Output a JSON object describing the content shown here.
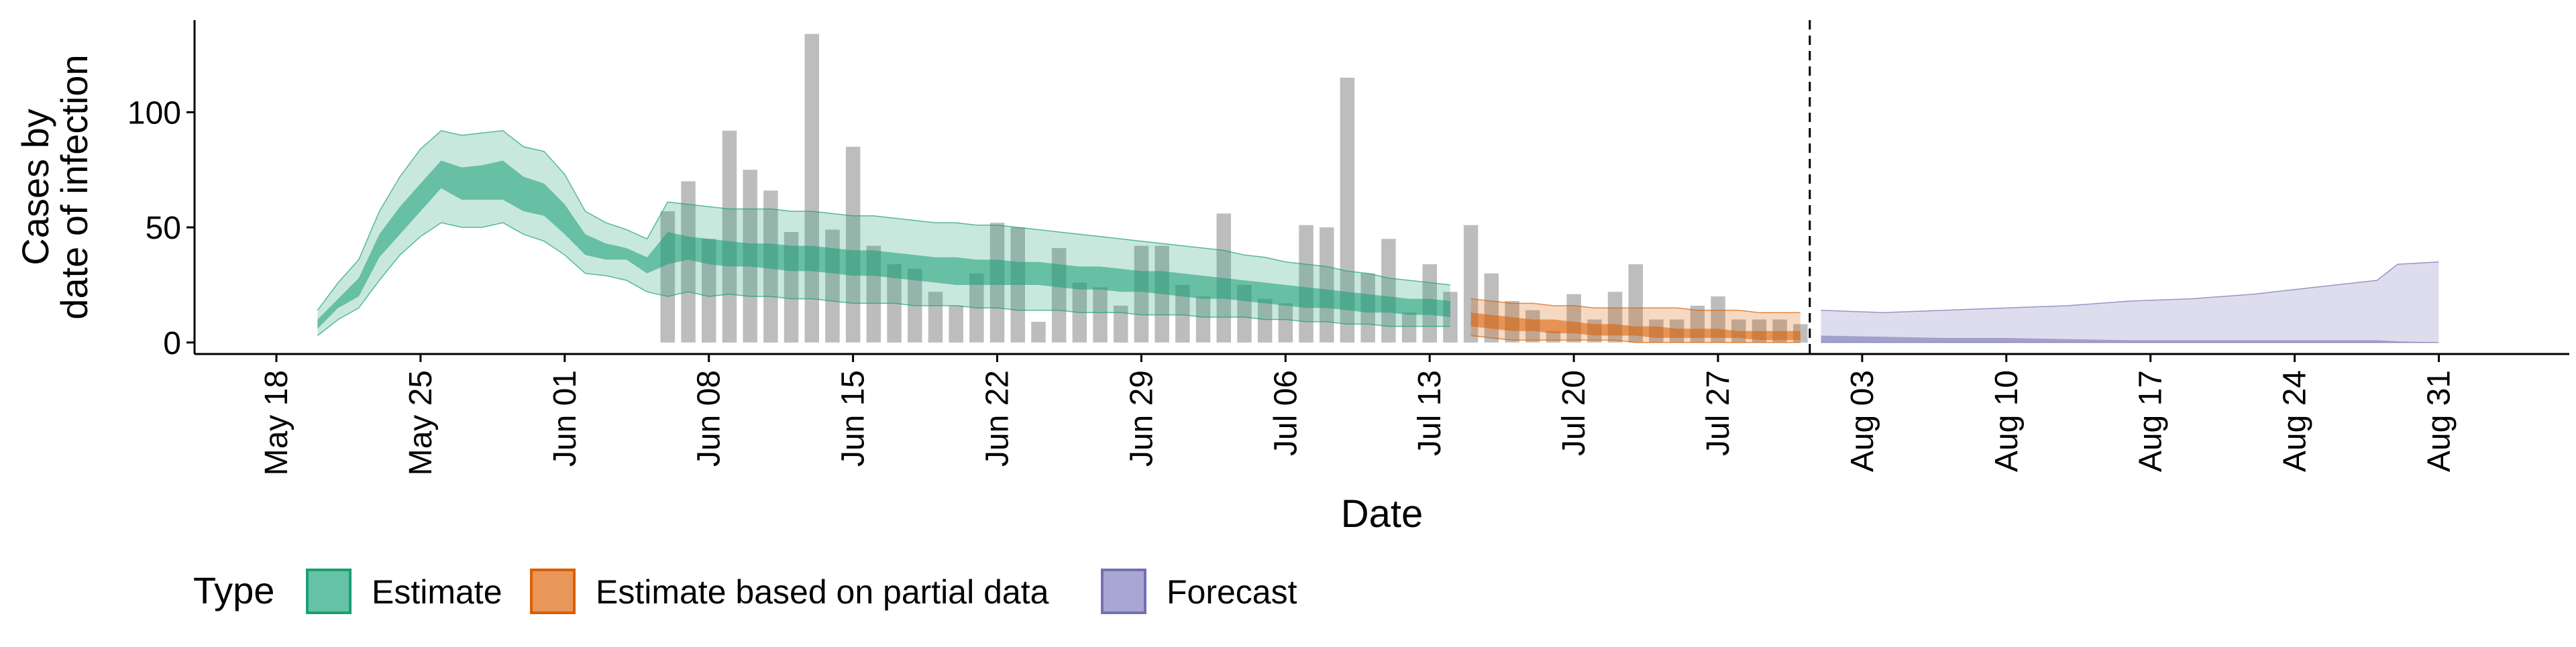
{
  "chart_data": {
    "type": "bar",
    "title": "",
    "xlabel": "Date",
    "ylabel_lines": [
      "Cases by",
      "date of infection"
    ],
    "ylim": [
      -5,
      140
    ],
    "y_ticks": [
      0,
      50,
      100
    ],
    "x_ticks": [
      "May 18",
      "May 25",
      "Jun 01",
      "Jun 08",
      "Jun 15",
      "Jun 22",
      "Jun 29",
      "Jul 06",
      "Jul 13",
      "Jul 20",
      "Jul 27",
      "Aug 03",
      "Aug 10",
      "Aug 17",
      "Aug 24",
      "Aug 31"
    ],
    "x_range_days": [
      -5,
      106
    ],
    "x_date_origin": "May 18",
    "forecast_date_dashed_line": "Jul 31",
    "grid": false,
    "legend": {
      "position": "bottom-left",
      "title": "Type",
      "entries": [
        {
          "label": "Estimate",
          "fill": "#66c2a5",
          "stroke": "#1b9e77"
        },
        {
          "label": "Estimate based on partial data",
          "fill": "#e9965a",
          "stroke": "#d95f02"
        },
        {
          "label": "Forecast",
          "fill": "#a9a6d3",
          "stroke": "#7570b3"
        }
      ]
    },
    "colors": {
      "bars": "#bdbdbd",
      "estimate": "#1b9e77",
      "partial": "#d95f02",
      "forecast": "#7570b3"
    },
    "reported_cases": {
      "dates": [
        "Jun 06",
        "Jun 07",
        "Jun 08",
        "Jun 09",
        "Jun 10",
        "Jun 11",
        "Jun 12",
        "Jun 13",
        "Jun 14",
        "Jun 15",
        "Jun 16",
        "Jun 17",
        "Jun 18",
        "Jun 19",
        "Jun 20",
        "Jun 21",
        "Jun 22",
        "Jun 23",
        "Jun 24",
        "Jun 25",
        "Jun 26",
        "Jun 27",
        "Jun 28",
        "Jun 29",
        "Jun 30",
        "Jul 01",
        "Jul 02",
        "Jul 03",
        "Jul 04",
        "Jul 05",
        "Jul 06",
        "Jul 07",
        "Jul 08",
        "Jul 09",
        "Jul 10",
        "Jul 11",
        "Jul 12",
        "Jul 13",
        "Jul 14",
        "Jul 15",
        "Jul 16",
        "Jul 17",
        "Jul 18",
        "Jul 19",
        "Jul 20",
        "Jul 21",
        "Jul 22",
        "Jul 23",
        "Jul 24",
        "Jul 25",
        "Jul 26",
        "Jul 27",
        "Jul 28",
        "Jul 29",
        "Jul 30",
        "Jul 31"
      ],
      "values": [
        57,
        70,
        45,
        92,
        75,
        66,
        48,
        134,
        49,
        85,
        42,
        34,
        32,
        22,
        16,
        30,
        52,
        50,
        9,
        41,
        26,
        24,
        16,
        42,
        42,
        25,
        20,
        56,
        25,
        19,
        17,
        51,
        50,
        115,
        30,
        45,
        13,
        34,
        22,
        51,
        30,
        18,
        14,
        5,
        21,
        10,
        22,
        34,
        10,
        10,
        16,
        20,
        10,
        10,
        10,
        8
      ]
    },
    "estimate": {
      "dates": [
        "May 20",
        "May 21",
        "May 22",
        "May 23",
        "May 24",
        "May 25",
        "May 26",
        "May 27",
        "May 28",
        "May 29",
        "May 30",
        "May 31",
        "Jun 01",
        "Jun 02",
        "Jun 03",
        "Jun 04",
        "Jun 05",
        "Jun 06",
        "Jun 07",
        "Jun 08",
        "Jun 09",
        "Jun 10",
        "Jun 11",
        "Jun 12",
        "Jun 13",
        "Jun 14",
        "Jun 15",
        "Jun 16",
        "Jun 17",
        "Jun 18",
        "Jun 19",
        "Jun 20",
        "Jun 21",
        "Jun 22",
        "Jun 23",
        "Jun 24",
        "Jun 25",
        "Jun 26",
        "Jun 27",
        "Jun 28",
        "Jun 29",
        "Jun 30",
        "Jul 01",
        "Jul 02",
        "Jul 03",
        "Jul 04",
        "Jul 05",
        "Jul 06",
        "Jul 07",
        "Jul 08",
        "Jul 09",
        "Jul 10",
        "Jul 11",
        "Jul 12",
        "Jul 13",
        "Jul 14"
      ],
      "lower_90": [
        3,
        10,
        15,
        27,
        38,
        46,
        52,
        50,
        50,
        52,
        47,
        44,
        38,
        30,
        29,
        27,
        22,
        20,
        22,
        20,
        21,
        20,
        20,
        19,
        19,
        18,
        17,
        17,
        17,
        16,
        16,
        16,
        15,
        15,
        14,
        14,
        14,
        13,
        13,
        13,
        12,
        12,
        12,
        11,
        11,
        11,
        10,
        10,
        9,
        9,
        8,
        8,
        7,
        7,
        7,
        7
      ],
      "lower_50": [
        6,
        15,
        20,
        37,
        47,
        57,
        67,
        62,
        62,
        62,
        57,
        55,
        47,
        38,
        36,
        36,
        30,
        34,
        36,
        34,
        33,
        33,
        32,
        31,
        31,
        30,
        29,
        29,
        28,
        27,
        26,
        25,
        25,
        25,
        25,
        25,
        24,
        23,
        23,
        22,
        22,
        21,
        20,
        19,
        19,
        18,
        17,
        16,
        15,
        15,
        14,
        13,
        13,
        12,
        12,
        11
      ],
      "upper_50": [
        10,
        19,
        28,
        47,
        59,
        69,
        79,
        76,
        77,
        79,
        72,
        69,
        60,
        47,
        43,
        41,
        37,
        48,
        46,
        45,
        44,
        43,
        43,
        42,
        42,
        41,
        40,
        40,
        39,
        38,
        37,
        37,
        36,
        36,
        35,
        35,
        34,
        33,
        33,
        32,
        31,
        31,
        30,
        29,
        28,
        27,
        26,
        25,
        24,
        23,
        22,
        21,
        20,
        19,
        19,
        18
      ],
      "upper_90": [
        14,
        26,
        36,
        57,
        72,
        84,
        92,
        90,
        91,
        92,
        85,
        83,
        73,
        57,
        52,
        49,
        45,
        61,
        60,
        59,
        58,
        58,
        58,
        57,
        57,
        56,
        55,
        55,
        54,
        53,
        52,
        52,
        51,
        51,
        50,
        49,
        48,
        47,
        46,
        45,
        44,
        43,
        42,
        41,
        40,
        38,
        37,
        35,
        34,
        33,
        31,
        30,
        28,
        27,
        26,
        25
      ]
    },
    "partial_estimate": {
      "dates": [
        "Jul 15",
        "Jul 16",
        "Jul 17",
        "Jul 18",
        "Jul 19",
        "Jul 20",
        "Jul 21",
        "Jul 22",
        "Jul 23",
        "Jul 24",
        "Jul 25",
        "Jul 26",
        "Jul 27",
        "Jul 28",
        "Jul 29",
        "Jul 30",
        "Jul 31"
      ],
      "lower_90": [
        3,
        2,
        1,
        1,
        1,
        1,
        1,
        1,
        0,
        0,
        0,
        0,
        0,
        0,
        0,
        0,
        0
      ],
      "lower_50": [
        7,
        6,
        5,
        5,
        4,
        4,
        3,
        3,
        3,
        2,
        2,
        2,
        2,
        2,
        1,
        1,
        1
      ],
      "upper_50": [
        13,
        12,
        11,
        10,
        10,
        9,
        8,
        8,
        7,
        7,
        6,
        6,
        6,
        5,
        5,
        5,
        5
      ],
      "upper_90": [
        19,
        18,
        17,
        17,
        16,
        16,
        15,
        15,
        15,
        15,
        15,
        14,
        14,
        14,
        13,
        13,
        13
      ]
    },
    "forecast": {
      "dates": [
        "Aug 01",
        "Aug 04",
        "Aug 07",
        "Aug 10",
        "Aug 13",
        "Aug 16",
        "Aug 19",
        "Aug 22",
        "Aug 25",
        "Aug 28",
        "Aug 29",
        "Aug 31"
      ],
      "lower_90": [
        0,
        0,
        0,
        0,
        0,
        0,
        0,
        0,
        0,
        0,
        0,
        0
      ],
      "lower_50": [
        0,
        0,
        0,
        0,
        0,
        0,
        0,
        0,
        0,
        0,
        0,
        0
      ],
      "upper_50": [
        3,
        2.5,
        2,
        2,
        1.5,
        1,
        1,
        1,
        1,
        1,
        0.5,
        0
      ],
      "upper_90": [
        14,
        13,
        14,
        15,
        16,
        18,
        19,
        21,
        24,
        27,
        34,
        35
      ]
    }
  }
}
